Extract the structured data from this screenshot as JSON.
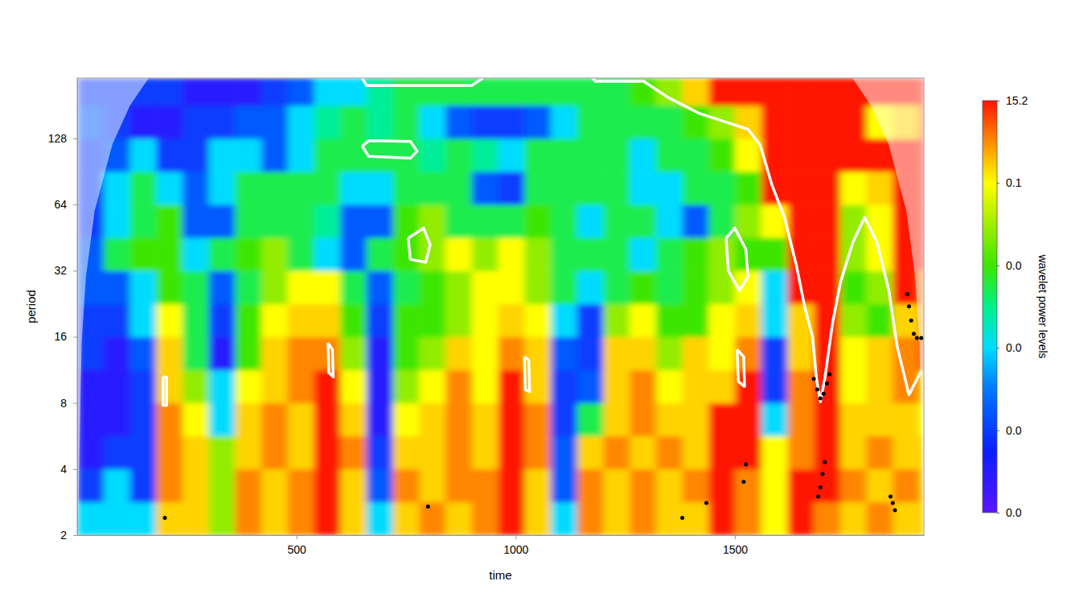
{
  "chart_data": {
    "type": "heatmap",
    "x_label": "time",
    "y_label": "period",
    "xlim": [
      0,
      1931
    ],
    "ylim": [
      2,
      241
    ],
    "xticks": [
      500,
      1000,
      1500
    ],
    "yticks": [
      2,
      4,
      8,
      16,
      32,
      64,
      128
    ],
    "log": "y",
    "cell_x": [
      0,
      60,
      120,
      180,
      240,
      300,
      360,
      420,
      480,
      540,
      600,
      660,
      720,
      780,
      840,
      900,
      960,
      1020,
      1080,
      1140,
      1200,
      1260,
      1320,
      1380,
      1440,
      1500,
      1560,
      1620,
      1680,
      1740,
      1800,
      1860,
      1920,
      1931
    ],
    "cell_period": [
      2,
      2.83,
      4,
      5.66,
      8,
      11.3,
      16,
      22.6,
      32,
      45.3,
      64,
      90.5,
      128,
      181,
      241
    ],
    "cells": [
      [
        0.012,
        0.012,
        0.012,
        3,
        3,
        0.06,
        8,
        3,
        8,
        15,
        3,
        0.012,
        3,
        8,
        3,
        8,
        15,
        3,
        0.012,
        8,
        3,
        8,
        3,
        3,
        15,
        8,
        0.1,
        15,
        8,
        3,
        8,
        3,
        3
      ],
      [
        0.004,
        0.012,
        0.004,
        8,
        3,
        0.06,
        8,
        3,
        8,
        15,
        3,
        0.006,
        8,
        3,
        8,
        8,
        15,
        3,
        0.006,
        8,
        3,
        8,
        3,
        8,
        15,
        8,
        0.1,
        15,
        15,
        8,
        3,
        8,
        3
      ],
      [
        0.002,
        0.004,
        0.004,
        8,
        3,
        0.06,
        3,
        8,
        3,
        15,
        8,
        0.004,
        3,
        3,
        8,
        3,
        15,
        8,
        0.006,
        3,
        8,
        3,
        8,
        3,
        15,
        15,
        0.1,
        8,
        15,
        3,
        8,
        3,
        3
      ],
      [
        0.002,
        0.002,
        0.004,
        8,
        0.1,
        0.012,
        3,
        8,
        3,
        15,
        3,
        0.002,
        0.1,
        3,
        8,
        3,
        15,
        8,
        0.004,
        0.025,
        3,
        8,
        3,
        3,
        15,
        15,
        0.012,
        8,
        15,
        3,
        3,
        3,
        0.1
      ],
      [
        0.002,
        0.002,
        0.004,
        3,
        0.06,
        0.012,
        0.1,
        3,
        8,
        15,
        0.1,
        0.002,
        0.06,
        0.1,
        8,
        0.1,
        15,
        3,
        0.004,
        0.006,
        3,
        8,
        0.1,
        3,
        3,
        15,
        0.004,
        8,
        15,
        0.1,
        3,
        8,
        3
      ],
      [
        0.004,
        0.002,
        0.006,
        3,
        0.025,
        0.002,
        0.03,
        3,
        8,
        8,
        0.06,
        0.002,
        0.03,
        0.06,
        3,
        0.1,
        8,
        3,
        0.006,
        0.004,
        3,
        3,
        0.06,
        3,
        0.1,
        8,
        0.004,
        3,
        15,
        0.1,
        3,
        8,
        15
      ],
      [
        0.004,
        0.004,
        0.012,
        0.1,
        0.025,
        0.004,
        0.03,
        0.1,
        3,
        3,
        0.03,
        0.004,
        0.03,
        0.03,
        0.06,
        0.1,
        3,
        0.1,
        0.012,
        0.004,
        0.06,
        0.1,
        0.03,
        0.03,
        0.1,
        3,
        0.012,
        3,
        15,
        0.06,
        0.03,
        3,
        8
      ],
      [
        0.006,
        0.006,
        0.012,
        0.03,
        0.025,
        0.006,
        0.025,
        0.06,
        0.1,
        0.1,
        0.025,
        0.006,
        0.025,
        0.03,
        0.06,
        0.1,
        0.1,
        0.06,
        0.025,
        0.012,
        0.025,
        0.03,
        0.025,
        0.03,
        0.06,
        0.1,
        0.012,
        15,
        15,
        0.03,
        0.06,
        15,
        8
      ],
      [
        0.006,
        0.025,
        0.03,
        0.03,
        0.012,
        0.025,
        0.03,
        0.06,
        0.025,
        0.012,
        0.006,
        0.025,
        0.03,
        0.06,
        0.1,
        0.06,
        0.1,
        0.06,
        0.025,
        0.025,
        0.025,
        0.012,
        0.025,
        0.03,
        0.06,
        0.03,
        0.03,
        15,
        15,
        0.06,
        0.1,
        15,
        15
      ],
      [
        0.004,
        0.012,
        0.025,
        0.03,
        0.006,
        0.006,
        0.025,
        0.025,
        0.025,
        0.02,
        0.006,
        0.006,
        0.03,
        0.06,
        0.025,
        0.025,
        0.025,
        0.03,
        0.025,
        0.012,
        0.025,
        0.025,
        0.012,
        0.006,
        0.025,
        0.06,
        0.1,
        15,
        15,
        0.06,
        0.1,
        15,
        15
      ],
      [
        0.004,
        0.012,
        0.025,
        0.012,
        0.006,
        0.012,
        0.025,
        0.025,
        0.025,
        0.025,
        0.012,
        0.012,
        0.025,
        0.025,
        0.025,
        0.006,
        0.004,
        0.025,
        0.025,
        0.025,
        0.025,
        0.012,
        0.012,
        0.025,
        0.025,
        0.03,
        15,
        15,
        15,
        0.1,
        3,
        15,
        15
      ],
      [
        0.004,
        0.006,
        0.012,
        0.004,
        0.004,
        0.012,
        0.012,
        0.006,
        0.012,
        0.025,
        0.025,
        0.025,
        0.025,
        0.02,
        0.025,
        0.02,
        0.012,
        0.025,
        0.025,
        0.025,
        0.025,
        0.012,
        0.025,
        0.025,
        0.03,
        0.1,
        15,
        15,
        15,
        15,
        15,
        15,
        15
      ],
      [
        0.006,
        0.004,
        0.002,
        0.002,
        0.004,
        0.004,
        0.006,
        0.006,
        0.012,
        0.02,
        0.025,
        0.02,
        0.025,
        0.012,
        0.006,
        0.004,
        0.004,
        0.006,
        0.012,
        0.025,
        0.025,
        0.025,
        0.025,
        0.03,
        0.06,
        3,
        15,
        15,
        15,
        15,
        0.1,
        3,
        15
      ],
      [
        0.004,
        0.004,
        0.004,
        0.004,
        0.002,
        0.002,
        0.002,
        0.004,
        0.006,
        0.012,
        0.012,
        0.02,
        0.025,
        0.025,
        0.025,
        0.025,
        0.025,
        0.025,
        0.025,
        0.025,
        0.025,
        0.03,
        0.06,
        3,
        15,
        15,
        15,
        15,
        15,
        15,
        15,
        15,
        15
      ]
    ],
    "colorbar": {
      "label": "wavelet power levels",
      "range": [
        0,
        15.2
      ],
      "ticks": [
        {
          "value": 0,
          "label": "0.0"
        },
        {
          "value": 0.004,
          "label": "0.0"
        },
        {
          "value": 0.012,
          "label": "0.0"
        },
        {
          "value": 0.03,
          "label": "0.0"
        },
        0.1,
        15.2
      ]
    },
    "coi": [
      {
        "x": [
          1.4,
          10,
          20,
          40,
          80,
          120,
          163
        ],
        "period": [
          2,
          15,
          30,
          60,
          120,
          180,
          241
        ]
      },
      {
        "x": [
          1768,
          1811,
          1851,
          1891,
          1911,
          1921,
          1929.6
        ],
        "period": [
          241,
          180,
          120,
          60,
          30,
          15,
          2
        ]
      }
    ],
    "contours": [
      {
        "x": [
          1175,
          1182,
          1292,
          1347,
          1420,
          1530,
          1558,
          1585,
          1613,
          1640,
          1659,
          1677,
          1686,
          1695,
          1705,
          1723,
          1741,
          1769,
          1796,
          1824,
          1851,
          1870,
          1897,
          1925
        ],
        "period": [
          241,
          233,
          233,
          197,
          166,
          141,
          119,
          78,
          56,
          34,
          22,
          16,
          10.3,
          8.1,
          10.3,
          18.6,
          28.4,
          43,
          56,
          43,
          26.1,
          14.5,
          8.7,
          11.2
        ]
      },
      {
        "x": [
          650,
          660,
          900,
          925
        ],
        "period": [
          241,
          223,
          223,
          241
        ]
      },
      {
        "x": [
          650,
          665,
          760,
          775,
          760,
          665,
          650
        ],
        "period": [
          118,
          125,
          124,
          112,
          104,
          106,
          118
        ]
      },
      {
        "x": [
          755,
          790,
          805,
          795,
          760,
          755
        ],
        "period": [
          45,
          50,
          42,
          35,
          36,
          45
        ]
      },
      {
        "x": [
          1480,
          1500,
          1525,
          1530,
          1510,
          1485,
          1480
        ],
        "period": [
          45,
          50,
          40,
          30,
          26,
          32,
          45
        ]
      },
      {
        "x": [
          196,
          204,
          204,
          196,
          196
        ],
        "period": [
          10.5,
          10.5,
          7.8,
          7.8,
          10.5
        ]
      },
      {
        "x": [
          572,
          582,
          584,
          574,
          572
        ],
        "period": [
          15,
          14,
          10.5,
          11,
          15
        ]
      },
      {
        "x": [
          1020,
          1030,
          1032,
          1022,
          1020
        ],
        "period": [
          13,
          12.5,
          9,
          9.2,
          13
        ]
      },
      {
        "x": [
          1505,
          1520,
          1522,
          1508,
          1505
        ],
        "period": [
          14,
          13,
          9.5,
          10,
          14
        ]
      }
    ],
    "ridge": {
      "x": [
        1680,
        1688,
        1695,
        1702,
        1710,
        1716,
        1893,
        1897,
        1902,
        1908,
        1915,
        1925,
        1690,
        1695,
        1700,
        1705,
        1520,
        1525,
        1855,
        1860,
        1865,
        1435,
        1380,
        800,
        200
      ],
      "period": [
        10.3,
        9.2,
        8.4,
        8.8,
        9.8,
        10.8,
        25,
        22,
        19,
        16.5,
        15.8,
        15.8,
        3.0,
        3.3,
        3.8,
        4.3,
        3.5,
        4.2,
        3.0,
        2.8,
        2.6,
        2.8,
        2.4,
        2.7,
        2.4
      ]
    }
  }
}
